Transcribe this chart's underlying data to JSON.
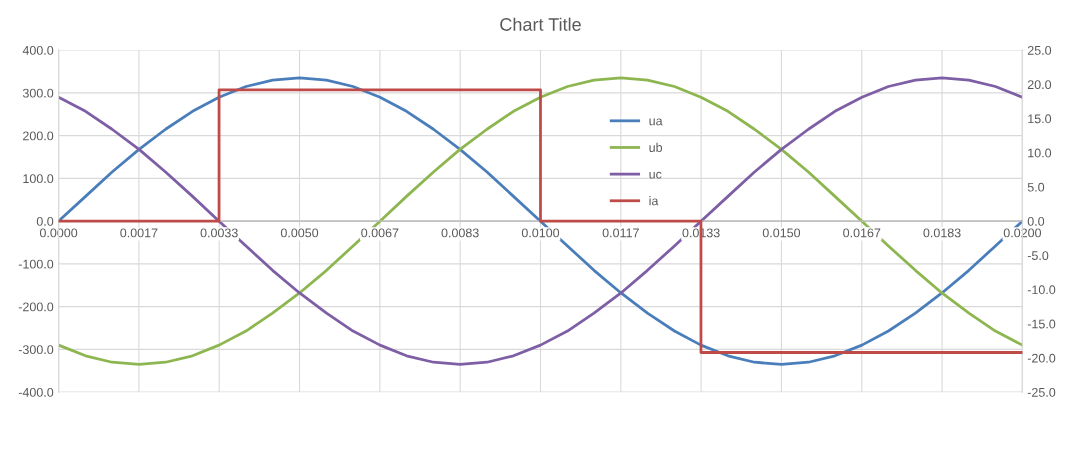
{
  "chart_data": {
    "type": "line",
    "title": "Chart Title",
    "x": [
      0,
      0.00056,
      0.00111,
      0.00167,
      0.00222,
      0.00278,
      0.00333,
      0.00389,
      0.00444,
      0.005,
      0.00556,
      0.00611,
      0.00667,
      0.00722,
      0.00778,
      0.00833,
      0.00889,
      0.00944,
      0.01,
      0.01056,
      0.01111,
      0.01167,
      0.01222,
      0.01278,
      0.01333,
      0.01389,
      0.01444,
      0.015,
      0.01556,
      0.01611,
      0.01667,
      0.01722,
      0.01778,
      0.01833,
      0.01889,
      0.01944,
      0.02
    ],
    "series": [
      {
        "name": "ua",
        "color": "#4a7ebb",
        "values": [
          0,
          58,
          115,
          168,
          215,
          257,
          290,
          315,
          330,
          335,
          330,
          315,
          290,
          257,
          215,
          168,
          115,
          58,
          0,
          -58,
          -115,
          -168,
          -215,
          -257,
          -290,
          -315,
          -330,
          -335,
          -330,
          -315,
          -290,
          -257,
          -215,
          -168,
          -115,
          -58,
          0
        ]
      },
      {
        "name": "ub",
        "color": "#8db650",
        "values": [
          -290,
          -315,
          -330,
          -335,
          -330,
          -315,
          -290,
          -257,
          -215,
          -168,
          -115,
          -58,
          0,
          58,
          115,
          168,
          215,
          257,
          290,
          315,
          330,
          335,
          330,
          315,
          290,
          257,
          215,
          168,
          115,
          58,
          0,
          -58,
          -115,
          -168,
          -215,
          -257,
          -290
        ]
      },
      {
        "name": "uc",
        "color": "#7e5fa5",
        "values": [
          290,
          257,
          215,
          168,
          115,
          58,
          0,
          -58,
          -115,
          -168,
          -215,
          -257,
          -290,
          -315,
          -330,
          -335,
          -330,
          -315,
          -290,
          -257,
          -215,
          -168,
          -115,
          -58,
          0,
          58,
          115,
          168,
          215,
          257,
          290,
          315,
          330,
          335,
          330,
          315,
          290
        ]
      },
      {
        "name": "ia",
        "color": "#be4b48",
        "axis": "y2",
        "x": [
          0,
          0.00333,
          0.00333,
          0.01,
          0.01,
          0.01333,
          0.01333,
          0.02
        ],
        "values": [
          0,
          0,
          19.2,
          19.2,
          0,
          0,
          -19.2,
          -19.2
        ]
      }
    ],
    "xlim": [
      0,
      0.02
    ],
    "xticks": [
      {
        "value": 0,
        "label": "0.0000"
      },
      {
        "value": 0.001667,
        "label": "0.0017"
      },
      {
        "value": 0.003333,
        "label": "0.0033"
      },
      {
        "value": 0.005,
        "label": "0.0050"
      },
      {
        "value": 0.006667,
        "label": "0.0067"
      },
      {
        "value": 0.008333,
        "label": "0.0083"
      },
      {
        "value": 0.01,
        "label": "0.0100"
      },
      {
        "value": 0.011667,
        "label": "0.0117"
      },
      {
        "value": 0.013333,
        "label": "0.0133"
      },
      {
        "value": 0.015,
        "label": "0.0150"
      },
      {
        "value": 0.016667,
        "label": "0.0167"
      },
      {
        "value": 0.018333,
        "label": "0.0183"
      },
      {
        "value": 0.02,
        "label": "0.0200"
      }
    ],
    "ylim": [
      -400,
      400
    ],
    "yticks": [
      {
        "value": -400,
        "label": "-400.0"
      },
      {
        "value": -300,
        "label": "-300.0"
      },
      {
        "value": -200,
        "label": "-200.0"
      },
      {
        "value": -100,
        "label": "-100.0"
      },
      {
        "value": 0,
        "label": "0.0"
      },
      {
        "value": 100,
        "label": "100.0"
      },
      {
        "value": 200,
        "label": "200.0"
      },
      {
        "value": 300,
        "label": "300.0"
      },
      {
        "value": 400,
        "label": "400.0"
      }
    ],
    "y2lim": [
      -25,
      25
    ],
    "y2ticks": [
      {
        "value": -25,
        "label": "-25.0"
      },
      {
        "value": -20,
        "label": "-20.0"
      },
      {
        "value": -15,
        "label": "-15.0"
      },
      {
        "value": -10,
        "label": "-10.0"
      },
      {
        "value": -5,
        "label": "-5.0"
      },
      {
        "value": 0,
        "label": "0.0"
      },
      {
        "value": 5,
        "label": "5.0"
      },
      {
        "value": 10,
        "label": "10.0"
      },
      {
        "value": 15,
        "label": "15.0"
      },
      {
        "value": 20,
        "label": "20.0"
      },
      {
        "value": 25,
        "label": "25.0"
      }
    ],
    "grid": true,
    "legend": "top",
    "marker": "none",
    "line_style": "solid"
  }
}
